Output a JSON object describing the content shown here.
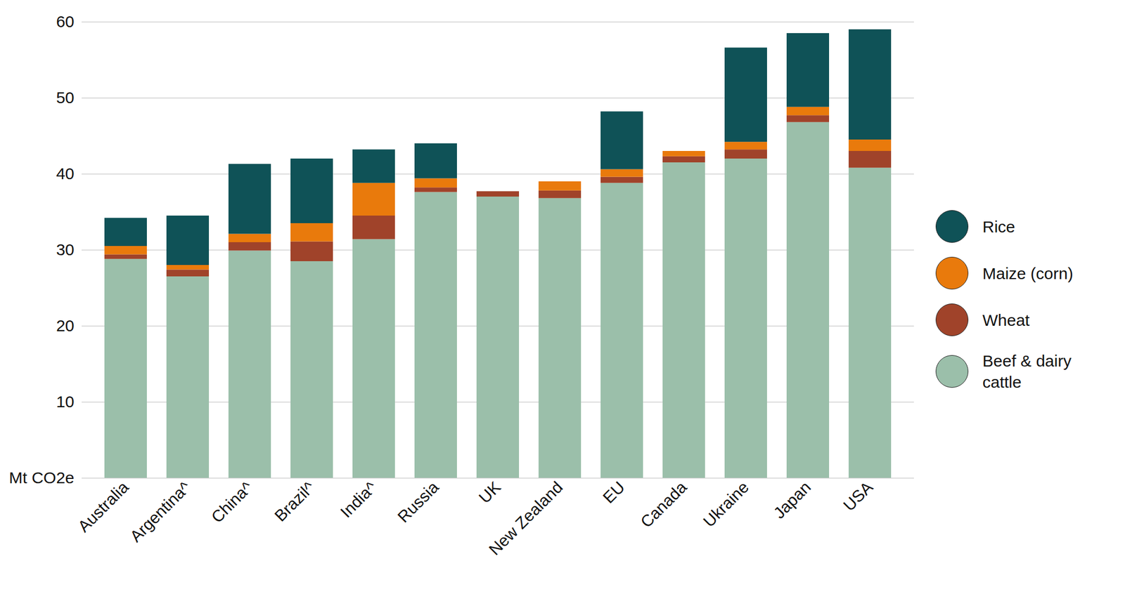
{
  "chart_data": {
    "type": "bar",
    "stacked": true,
    "grid": true,
    "legend": "right",
    "categories": [
      "Australia",
      "Argentina^",
      "China^",
      "Brazil^",
      "India^",
      "Russia",
      "UK",
      "New Zealand",
      "EU",
      "Canada",
      "Ukraine",
      "Japan",
      "USA"
    ],
    "series": [
      {
        "name": "Beef & dairy cattle",
        "color": "#9bbfaa",
        "values": [
          28.8,
          26.5,
          29.9,
          28.5,
          31.4,
          37.6,
          37.0,
          36.8,
          38.8,
          41.5,
          42.0,
          46.8,
          40.8
        ]
      },
      {
        "name": "Wheat",
        "color": "#a0432a",
        "values": [
          0.6,
          0.9,
          1.1,
          2.6,
          3.1,
          0.6,
          0.7,
          1.0,
          0.8,
          0.8,
          1.2,
          0.9,
          2.2
        ]
      },
      {
        "name": "Maize (corn)",
        "color": "#e97a0c",
        "values": [
          1.1,
          0.6,
          1.1,
          2.4,
          4.3,
          1.2,
          0,
          1.2,
          1.0,
          0.7,
          1.0,
          1.1,
          1.5
        ]
      },
      {
        "name": "Rice",
        "color": "#0f5257",
        "values": [
          3.7,
          6.5,
          9.2,
          8.5,
          4.4,
          4.6,
          0,
          0,
          7.6,
          0,
          12.4,
          9.7,
          14.5
        ]
      }
    ],
    "ylim": [
      0,
      60
    ],
    "yticks": [
      {
        "value": 0,
        "label": "Mt CO2e"
      },
      10,
      20,
      30,
      40,
      50,
      60
    ]
  }
}
